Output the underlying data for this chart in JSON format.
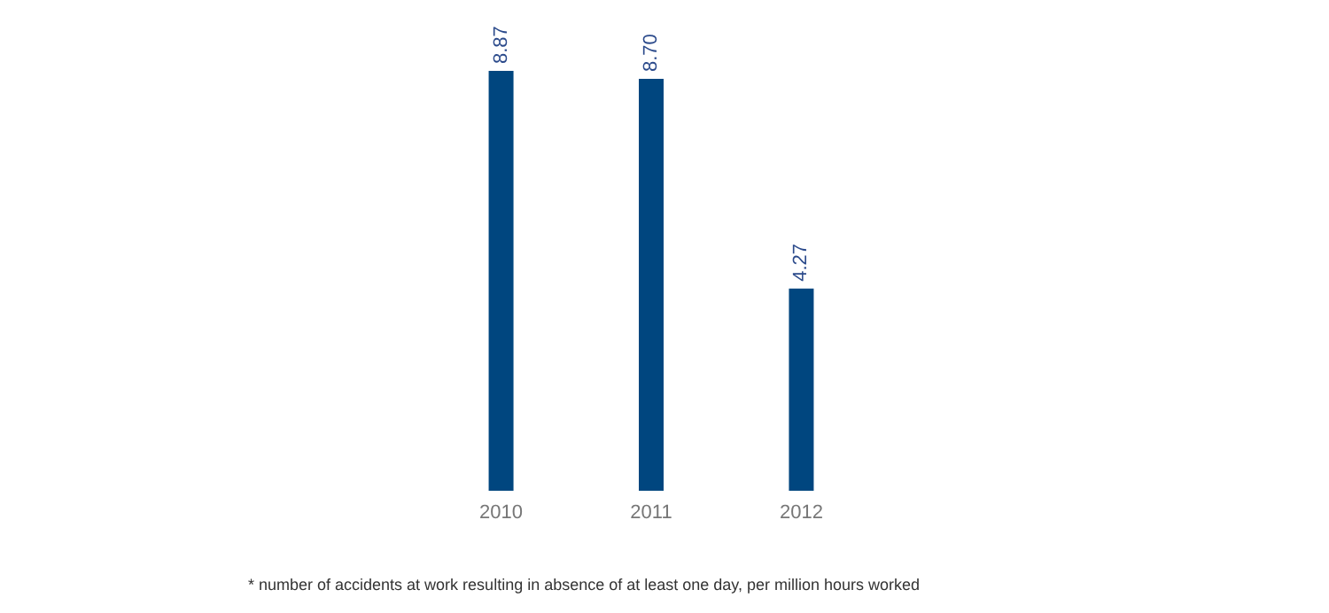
{
  "chart_data": {
    "type": "bar",
    "categories": [
      "2010",
      "2011",
      "2012"
    ],
    "values": [
      8.87,
      8.7,
      4.27
    ],
    "value_labels": [
      "8.87",
      "8.70",
      "4.27"
    ],
    "color": "#00467f",
    "annotations": [
      "* number of accidents at work resulting in absence of at least one day, per million hours worked"
    ]
  }
}
